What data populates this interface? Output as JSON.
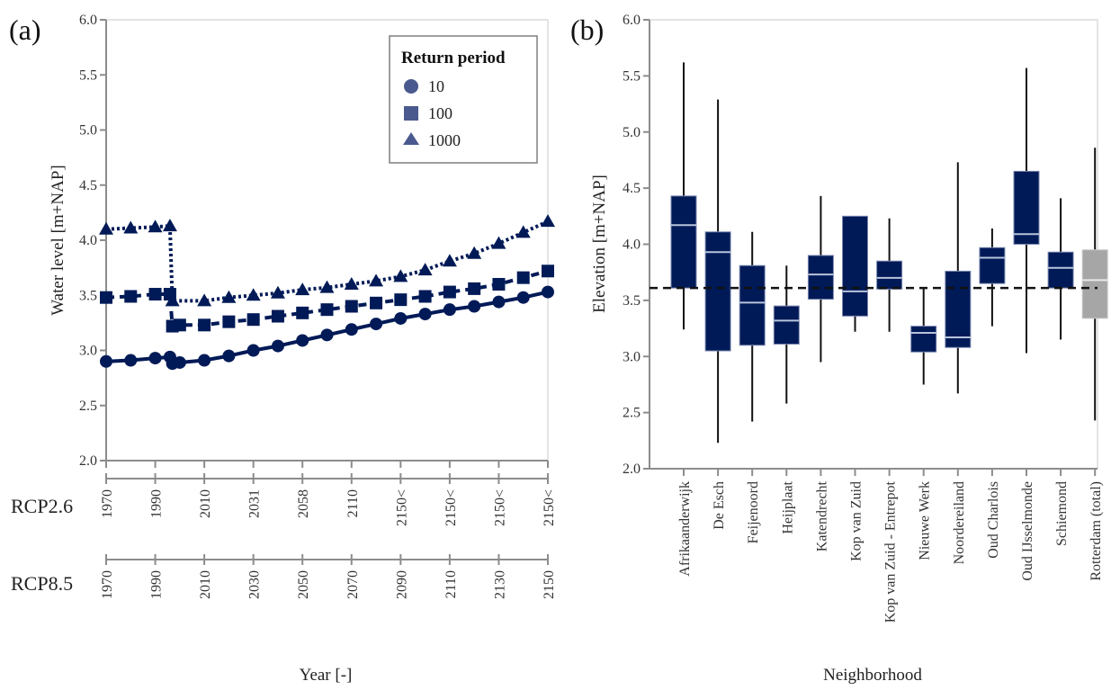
{
  "chart_data": [
    {
      "type": "line",
      "panel_label": "(a)",
      "title": "",
      "xlabel": "Year [-]",
      "ylabel": "Water level [m+NAP]",
      "ylim": [
        2.0,
        6.0
      ],
      "yticks": [
        "2.0",
        "2.5",
        "3.0",
        "3.5",
        "4.0",
        "4.5",
        "5.0",
        "5.5",
        "6.0"
      ],
      "xlim": [
        1970,
        2150
      ],
      "grid": false,
      "legend": {
        "title": "Return period",
        "placement": "top-right",
        "entries": [
          {
            "label": "10",
            "marker": "circle"
          },
          {
            "label": "100",
            "marker": "square"
          },
          {
            "label": "1000",
            "marker": "triangle"
          }
        ]
      },
      "secondary_axes": [
        {
          "name": "RCP2.6",
          "tick_positions": [
            1970,
            1990,
            2010,
            2030,
            2050,
            2070,
            2090,
            2110,
            2130,
            2150
          ],
          "tick_labels": [
            "1970",
            "1990",
            "2010",
            "2031",
            "2058",
            "2110",
            "2150<",
            "2150<",
            "2150<",
            "2150<"
          ]
        },
        {
          "name": "RCP8.5",
          "tick_positions": [
            1970,
            1990,
            2010,
            2030,
            2050,
            2070,
            2090,
            2110,
            2130,
            2150
          ],
          "tick_labels": [
            "1970",
            "1990",
            "2010",
            "2030",
            "2050",
            "2070",
            "2090",
            "2110",
            "2130",
            "2150"
          ]
        }
      ],
      "series": [
        {
          "name": "10",
          "marker": "circle",
          "linestyle": "solid",
          "x": [
            1970,
            1980,
            1990,
            1996,
            1997,
            2000,
            2010,
            2020,
            2030,
            2040,
            2050,
            2060,
            2070,
            2080,
            2090,
            2100,
            2110,
            2120,
            2130,
            2140,
            2150
          ],
          "y": [
            2.9,
            2.91,
            2.93,
            2.94,
            2.88,
            2.89,
            2.91,
            2.95,
            3.0,
            3.04,
            3.09,
            3.14,
            3.19,
            3.24,
            3.29,
            3.33,
            3.37,
            3.4,
            3.44,
            3.48,
            3.53
          ]
        },
        {
          "name": "100",
          "marker": "square",
          "linestyle": "dashed",
          "x": [
            1970,
            1980,
            1990,
            1996,
            1997,
            2000,
            2010,
            2020,
            2030,
            2040,
            2050,
            2060,
            2070,
            2080,
            2090,
            2100,
            2110,
            2120,
            2130,
            2140,
            2150
          ],
          "y": [
            3.48,
            3.49,
            3.51,
            3.51,
            3.22,
            3.23,
            3.23,
            3.26,
            3.28,
            3.31,
            3.34,
            3.37,
            3.4,
            3.43,
            3.46,
            3.49,
            3.53,
            3.56,
            3.6,
            3.66,
            3.72
          ]
        },
        {
          "name": "1000",
          "marker": "triangle",
          "linestyle": "dotted",
          "x": [
            1970,
            1980,
            1990,
            1996,
            1997,
            2010,
            2020,
            2030,
            2040,
            2050,
            2060,
            2070,
            2080,
            2090,
            2100,
            2110,
            2120,
            2130,
            2140,
            2150
          ],
          "y": [
            4.1,
            4.11,
            4.12,
            4.13,
            3.45,
            3.45,
            3.48,
            3.5,
            3.52,
            3.55,
            3.57,
            3.6,
            3.63,
            3.67,
            3.73,
            3.81,
            3.88,
            3.97,
            4.07,
            4.17
          ]
        }
      ]
    },
    {
      "type": "box",
      "panel_label": "(b)",
      "title": "",
      "xlabel": "Neighborhood",
      "ylabel": "Elevation [m+NAP]",
      "ylim": [
        2.0,
        6.0
      ],
      "yticks": [
        "2.0",
        "2.5",
        "3.0",
        "3.5",
        "4.0",
        "4.5",
        "5.0",
        "5.5",
        "6.0"
      ],
      "reference_line": {
        "y": 3.61,
        "style": "dashed"
      },
      "grid": false,
      "categories": [
        "Afrikaanderwijk",
        "De Esch",
        "Feijenoord",
        "Heijplaat",
        "Katendrecht",
        "Kop van Zuid",
        "Kop van Zuid - Entrepot",
        "Nieuwe Werk",
        "Noordereiland",
        "Oud Charlois",
        "Oud IJsselmonde",
        "Schiemond",
        "Rotterdam (total)"
      ],
      "boxes": [
        {
          "whisker_low": 3.24,
          "q1": 3.61,
          "median": 4.17,
          "q3": 4.43,
          "whisker_high": 5.62
        },
        {
          "whisker_low": 2.23,
          "q1": 3.05,
          "median": 3.93,
          "q3": 4.11,
          "whisker_high": 5.29
        },
        {
          "whisker_low": 2.42,
          "q1": 3.1,
          "median": 3.48,
          "q3": 3.81,
          "whisker_high": 4.11
        },
        {
          "whisker_low": 2.58,
          "q1": 3.11,
          "median": 3.32,
          "q3": 3.45,
          "whisker_high": 3.81
        },
        {
          "whisker_low": 2.95,
          "q1": 3.51,
          "median": 3.73,
          "q3": 3.9,
          "whisker_high": 4.43
        },
        {
          "whisker_low": 3.22,
          "q1": 3.36,
          "median": 3.58,
          "q3": 4.25,
          "whisker_high": 4.25
        },
        {
          "whisker_low": 3.22,
          "q1": 3.6,
          "median": 3.7,
          "q3": 3.85,
          "whisker_high": 4.23
        },
        {
          "whisker_low": 2.75,
          "q1": 3.04,
          "median": 3.21,
          "q3": 3.27,
          "whisker_high": 3.61
        },
        {
          "whisker_low": 2.67,
          "q1": 3.08,
          "median": 3.17,
          "q3": 3.76,
          "whisker_high": 4.73
        },
        {
          "whisker_low": 3.27,
          "q1": 3.65,
          "median": 3.88,
          "q3": 3.97,
          "whisker_high": 4.14
        },
        {
          "whisker_low": 3.03,
          "q1": 4.0,
          "median": 4.09,
          "q3": 4.65,
          "whisker_high": 5.57
        },
        {
          "whisker_low": 3.15,
          "q1": 3.61,
          "median": 3.79,
          "q3": 3.93,
          "whisker_high": 4.41
        },
        {
          "whisker_low": 2.43,
          "q1": 3.34,
          "median": 3.68,
          "q3": 3.95,
          "whisker_high": 4.86
        }
      ],
      "colors": {
        "box": "#001a57",
        "total_box": "#a6a6a6",
        "median": "#b8c4dc",
        "total_median": "#e8e8e8"
      }
    }
  ],
  "colors": {
    "series": "#001a57",
    "legend_marker": "#4a5a8e",
    "axis": "#8c8c8c",
    "frame": "#d9d9d9"
  }
}
